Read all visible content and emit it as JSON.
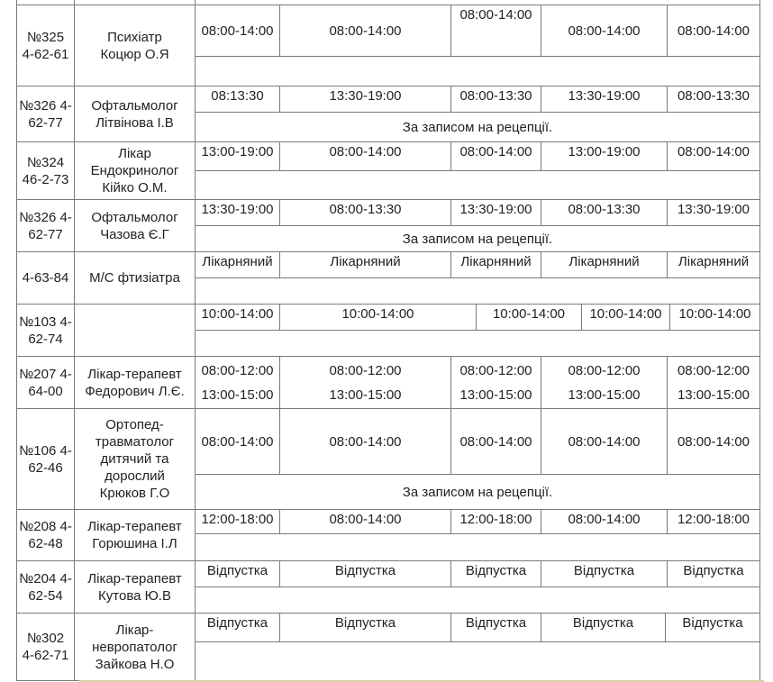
{
  "note_reception": "За записом на рецепції.",
  "rows": [
    {
      "room": [
        "№325",
        "4-62-61"
      ],
      "doctor": [
        "Психіатр",
        "Коцюр О.Я"
      ],
      "times": [
        "08:00-14:00",
        "08:00-14:00",
        "08:00-14:00",
        "08:00-14:00",
        "08:00-14:00"
      ],
      "note": ""
    },
    {
      "room": [
        "№326 4-",
        "62-77"
      ],
      "doctor": [
        "Офтальмолог",
        "Літвінова І.В"
      ],
      "times": [
        "08:13:30",
        "13:30-19:00",
        "08:00-13:30",
        "13:30-19:00",
        "08:00-13:30"
      ],
      "note": "За записом на рецепції."
    },
    {
      "room": [
        "№324",
        "46-2-73"
      ],
      "doctor": [
        "Лікар",
        "Ендокринолог",
        "Кійко О.М."
      ],
      "times": [
        "13:00-19:00",
        "08:00-14:00",
        "08:00-14:00",
        "13:00-19:00",
        "08:00-14:00"
      ],
      "note": ""
    },
    {
      "room": [
        "№326 4-",
        "62-77"
      ],
      "doctor": [
        "Офтальмолог",
        "Чазова Є.Г"
      ],
      "times": [
        "13:30-19:00",
        "08:00-13:30",
        "13:30-19:00",
        "08:00-13:30",
        "13:30-19:00"
      ],
      "note": "За записом на рецепції."
    },
    {
      "room": [
        "4-63-84"
      ],
      "doctor": [
        "М/С фтизіатра"
      ],
      "times": [
        "Лікарняний",
        "Лікарняний",
        "Лікарняний",
        "Лікарняний",
        "Лікарняний"
      ],
      "note": ""
    },
    {
      "room": [
        "№103 4-",
        "62-74"
      ],
      "doctor": [],
      "times": [
        "10:00-14:00",
        "10:00-14:00",
        "10:00-14:00",
        "10:00-14:00",
        "10:00-14:00"
      ],
      "note": ""
    },
    {
      "room": [
        "№207 4-",
        "64-00"
      ],
      "doctor": [
        "Лікар-терапевт",
        "Федорович Л.Є."
      ],
      "times": [
        "08:00-12:00\n13:00-15:00",
        "08:00-12:00\n13:00-15:00",
        "08:00-12:00\n13:00-15:00",
        "08:00-12:00\n13:00-15:00",
        "08:00-12:00\n13:00-15:00"
      ],
      "note": ""
    },
    {
      "room": [
        "№106 4-",
        "62-46"
      ],
      "doctor": [
        "Ортопед-",
        "травматолог",
        "дитячий та",
        "дорослий",
        "Крюков Г.О"
      ],
      "times": [
        "08:00-14:00",
        "08:00-14:00",
        "08:00-14:00",
        "08:00-14:00",
        "08:00-14:00"
      ],
      "note": "За записом на рецепції."
    },
    {
      "room": [
        "№208 4-",
        "62-48"
      ],
      "doctor": [
        "Лікар-терапевт",
        "Горюшина І.Л"
      ],
      "times": [
        "12:00-18:00",
        "08:00-14:00",
        "12:00-18:00",
        "08:00-14:00",
        "12:00-18:00"
      ],
      "note": ""
    },
    {
      "room": [
        "№204 4-",
        "62-54"
      ],
      "doctor": [
        "Лікар-терапевт",
        "Кутова Ю.В"
      ],
      "times": [
        "Відпустка",
        "Відпустка",
        "Відпустка",
        "Відпустка",
        "Відпустка"
      ],
      "note": ""
    },
    {
      "room": [
        "№302",
        "4-62-71"
      ],
      "doctor": [
        "Лікар-",
        "невропатолог",
        "Зайкова Н.О"
      ],
      "times": [
        "Відпустка",
        "Відпустка",
        "Відпустка",
        "Відпустка",
        "Відпустка"
      ],
      "note": ""
    }
  ]
}
